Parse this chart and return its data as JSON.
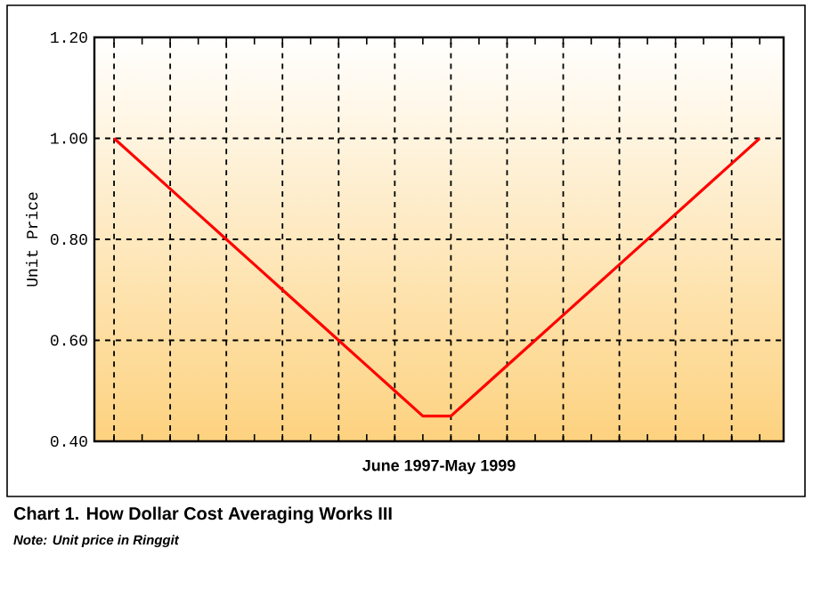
{
  "chart_data": {
    "type": "line",
    "title": "Chart 1. How Dollar Cost Averaging Works III",
    "xlabel": "June 1997-May 1999",
    "ylabel": "Unit Price",
    "annotations": [
      "Note: Unit price in Ringgit"
    ],
    "categories": [
      null,
      null,
      null,
      null,
      null,
      null,
      null,
      null,
      null,
      null,
      null,
      null,
      null,
      null,
      null,
      null,
      null,
      null,
      null,
      null,
      null,
      null,
      null,
      null
    ],
    "series": [
      {
        "color": "#ff0000",
        "values": [
          1.0,
          0.95,
          0.9,
          0.85,
          0.8,
          0.75,
          0.7,
          0.65,
          0.6,
          0.55,
          0.5,
          0.45,
          0.45,
          0.5,
          0.55,
          0.6,
          0.65,
          0.7,
          0.75,
          0.8,
          0.85,
          0.9,
          0.95,
          1.0
        ]
      }
    ],
    "ylim": [
      0.4,
      1.2
    ],
    "yticks": [
      {
        "value": 0.4,
        "label": "0.40"
      },
      {
        "value": 0.6,
        "label": "0.60"
      },
      {
        "value": 0.8,
        "label": "0.80"
      },
      {
        "value": 1.0,
        "label": "1.00"
      },
      {
        "value": 1.2,
        "label": "1.20"
      }
    ],
    "grid": true,
    "marker": "none",
    "line_style": "solid"
  }
}
